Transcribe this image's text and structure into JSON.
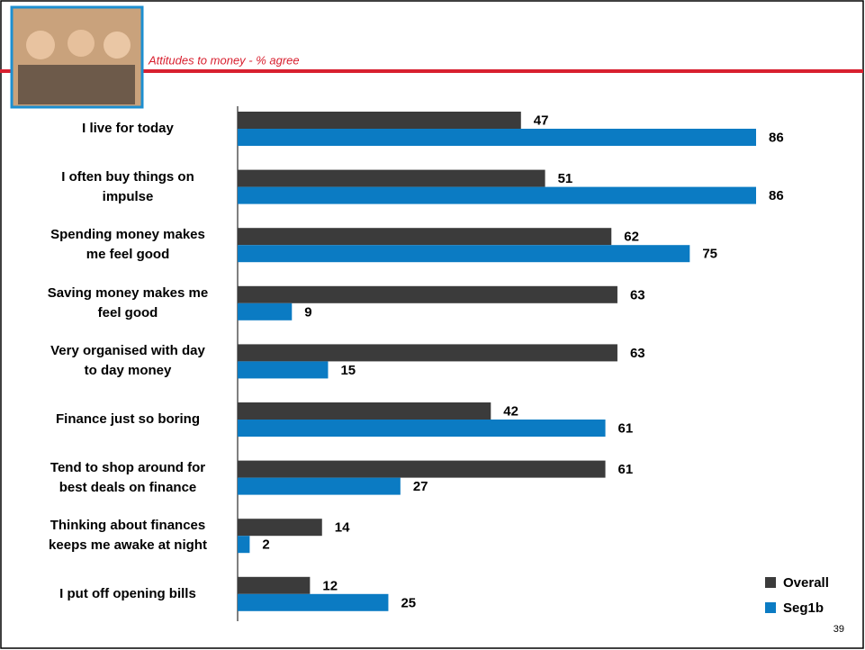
{
  "chart_data": {
    "type": "barh",
    "title": "Attitudes to money - % agree",
    "categories": [
      "I live for today",
      "I often buy things on\nimpulse",
      "Spending money makes\nme feel good",
      "Saving money makes me\nfeel good",
      "Very organised with day\nto day money",
      "Finance just so boring",
      "Tend to shop around for\nbest deals on finance",
      "Thinking about finances\nkeeps me awake at night",
      "I put off opening bills"
    ],
    "series": [
      {
        "name": "Overall",
        "color": "#3b3b3b",
        "values": [
          47,
          51,
          62,
          63,
          63,
          42,
          61,
          14,
          12
        ]
      },
      {
        "name": "Seg1b",
        "color": "#0b7bc3",
        "values": [
          86,
          86,
          75,
          9,
          15,
          61,
          27,
          2,
          25
        ]
      }
    ],
    "legend": "bottom-right"
  },
  "page_number": 39
}
